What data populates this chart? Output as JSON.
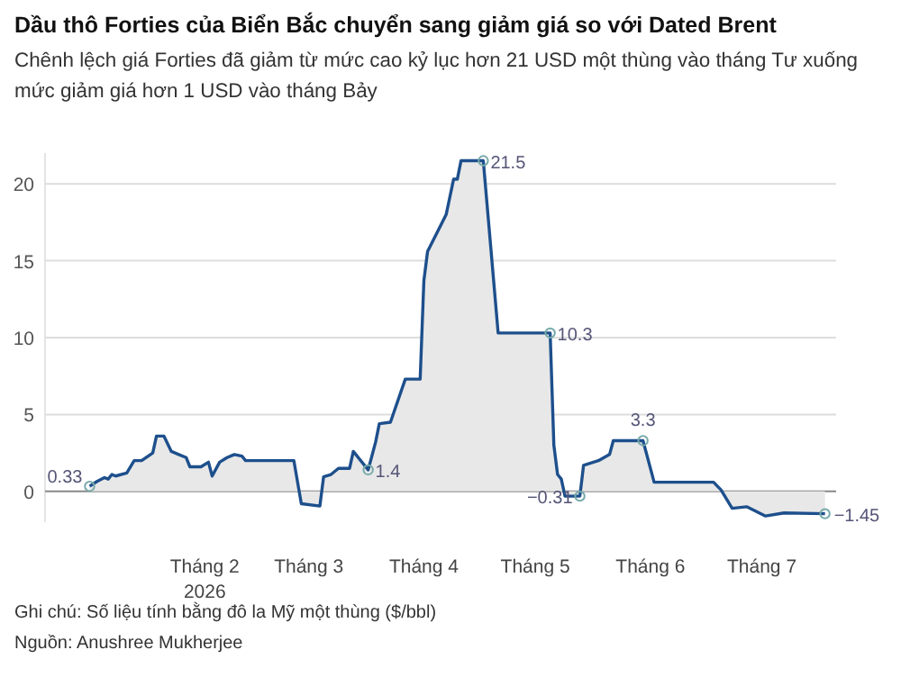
{
  "chart_data": {
    "type": "area",
    "title": "Dầu thô Forties của Biển Bắc chuyển sang giảm giá so với Dated Brent",
    "subtitle": "Chênh lệch giá Forties đã giảm từ mức cao kỷ lục hơn 21 USD một thùng vào tháng Tư xuống mức giảm giá hơn 1 USD vào tháng Bảy",
    "x": [
      "2026-01-01",
      "2026-01-03",
      "2026-01-05",
      "2026-01-06",
      "2026-01-07",
      "2026-01-08",
      "2026-01-11",
      "2026-01-13",
      "2026-01-15",
      "2026-01-18",
      "2026-01-19",
      "2026-01-21",
      "2026-01-23",
      "2026-01-25",
      "2026-01-27",
      "2026-01-28",
      "2026-01-31",
      "2026-02-02",
      "2026-02-03",
      "2026-02-05",
      "2026-02-07",
      "2026-02-09",
      "2026-02-11",
      "2026-02-12",
      "2026-02-25",
      "2026-02-27",
      "2026-03-04",
      "2026-03-05",
      "2026-03-07",
      "2026-03-09",
      "2026-03-12",
      "2026-03-13",
      "2026-03-17",
      "2026-03-19",
      "2026-03-20",
      "2026-03-23",
      "2026-03-24",
      "2026-03-27",
      "2026-03-31",
      "2026-04-01",
      "2026-04-02",
      "2026-04-07",
      "2026-04-09",
      "2026-04-10",
      "2026-04-11",
      "2026-04-17",
      "2026-04-21",
      "2026-05-05",
      "2026-05-06",
      "2026-05-07",
      "2026-05-08",
      "2026-05-09",
      "2026-05-13",
      "2026-05-14",
      "2026-05-18",
      "2026-05-21",
      "2026-05-22",
      "2026-05-30",
      "2026-06-02",
      "2026-06-18",
      "2026-06-20",
      "2026-06-23",
      "2026-06-27",
      "2026-07-02",
      "2026-07-07",
      "2026-07-18"
    ],
    "series": [
      {
        "color": "#1d4f8c",
        "values": [
          0.33,
          0.65,
          0.9,
          0.8,
          1.1,
          1.0,
          1.2,
          2.0,
          2.0,
          2.5,
          3.6,
          3.6,
          2.6,
          2.4,
          2.2,
          1.6,
          1.6,
          1.9,
          1.0,
          1.9,
          2.2,
          2.4,
          2.3,
          2.0,
          2.0,
          -0.8,
          -0.95,
          0.95,
          1.1,
          1.5,
          1.5,
          2.6,
          1.4,
          3.2,
          4.4,
          4.5,
          5.2,
          7.3,
          7.3,
          13.7,
          15.6,
          18.0,
          20.3,
          20.3,
          21.5,
          21.5,
          10.3,
          10.3,
          3.0,
          1.1,
          0.8,
          -0.31,
          -0.31,
          1.7,
          2.0,
          2.4,
          3.3,
          3.3,
          0.6,
          0.6,
          0.1,
          -1.1,
          -1.0,
          -1.6,
          -1.4,
          -1.45
        ]
      }
    ],
    "xlim": [
      "2025-12-20",
      "2026-07-21"
    ],
    "xticks": [
      {
        "value": "2026-02-01",
        "label": "Tháng 2\n2026"
      },
      {
        "value": "2026-03-01",
        "label": "Tháng 3"
      },
      {
        "value": "2026-04-01",
        "label": "Tháng 4"
      },
      {
        "value": "2026-05-01",
        "label": "Tháng 5"
      },
      {
        "value": "2026-06-01",
        "label": "Tháng 6"
      },
      {
        "value": "2026-07-01",
        "label": "Tháng 7"
      }
    ],
    "ylim": [
      -2,
      22
    ],
    "yticks": [
      0,
      5,
      10,
      15,
      20
    ],
    "grid": "y",
    "annotations": [
      {
        "text": "0.33",
        "x": "2026-01-01",
        "y": 0.33
      },
      {
        "text": "1.4",
        "x": "2026-03-17",
        "y": 1.4
      },
      {
        "text": "21.5",
        "x": "2026-04-17",
        "y": 21.5
      },
      {
        "text": "10.3",
        "x": "2026-05-05",
        "y": 10.3
      },
      {
        "text": "−0.31",
        "x": "2026-05-13",
        "y": -0.31
      },
      {
        "text": "3.3",
        "x": "2026-05-30",
        "y": 3.3
      },
      {
        "text": "−1.45",
        "x": "2026-07-18",
        "y": -1.45
      },
      "Ghi chú: Số liệu tính bằng đô la Mỹ một thùng ($/bbl)",
      "Nguồn: Anushree Mukherjee"
    ]
  }
}
